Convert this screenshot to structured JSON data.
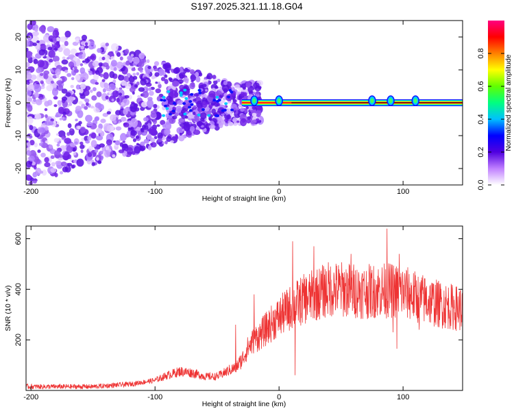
{
  "title": "S197.2025.321.11.18.G04",
  "chart_data": [
    {
      "type": "heatmap",
      "name": "spectrogram",
      "xlabel": "Height of straight line (km)",
      "ylabel": "Frequency (Hz)",
      "xlim": [
        -204,
        148
      ],
      "ylim": [
        -25,
        25
      ],
      "xticks": [
        -200,
        -100,
        0,
        100
      ],
      "yticks": [
        -20,
        -10,
        0,
        10,
        20
      ],
      "colorbar": {
        "label": "Normalized spectral amplitude",
        "range": [
          0,
          1
        ],
        "ticks": [
          "0.0",
          "0.2",
          "0.4",
          "0.6",
          "0.8"
        ],
        "tick_values": [
          0,
          0.2,
          0.4,
          0.6,
          0.8
        ],
        "colors": [
          "#ffffff",
          "#c080ff",
          "#5000e0",
          "#0000ff",
          "#00c0ff",
          "#00ff80",
          "#60ff00",
          "#ffff00",
          "#ff8000",
          "#ff0000",
          "#ff0080"
        ]
      },
      "features": {
        "noise_region_km": [
          -204,
          -35
        ],
        "ridge_start_km": -30,
        "ridge_frequency_hz": 0,
        "ridge_bumps_km": [
          -20,
          0,
          75,
          90,
          110
        ]
      }
    },
    {
      "type": "line",
      "name": "snr",
      "xlabel": "Height of straight line (km)",
      "ylabel": "SNR (10 * v/v)",
      "xlim": [
        -204,
        148
      ],
      "ylim": [
        0,
        650
      ],
      "xticks": [
        -200,
        -100,
        0,
        100
      ],
      "yticks": [
        200,
        400,
        600
      ],
      "color": "#ee3333",
      "trend": {
        "x": [
          -204,
          -150,
          -120,
          -100,
          -90,
          -80,
          -70,
          -60,
          -50,
          -40,
          -35,
          -30,
          -25,
          -20,
          -15,
          -10,
          -5,
          0,
          5,
          10,
          20,
          30,
          40,
          50,
          60,
          70,
          80,
          90,
          100,
          110,
          120,
          130,
          140,
          148
        ],
        "y": [
          15,
          15,
          25,
          40,
          60,
          75,
          70,
          55,
          55,
          80,
          90,
          120,
          170,
          200,
          220,
          245,
          270,
          290,
          310,
          330,
          360,
          380,
          400,
          400,
          395,
          390,
          395,
          395,
          390,
          370,
          355,
          340,
          330,
          320
        ]
      },
      "spikes": [
        {
          "x": -35,
          "y": 260
        },
        {
          "x": -20,
          "y": 380
        },
        {
          "x": 11,
          "y": 590
        },
        {
          "x": 13,
          "y": 60
        },
        {
          "x": 28,
          "y": 570
        },
        {
          "x": 58,
          "y": 540
        },
        {
          "x": 87,
          "y": 640
        },
        {
          "x": 97,
          "y": 540
        },
        {
          "x": 92,
          "y": 230
        },
        {
          "x": 113,
          "y": 585
        },
        {
          "x": 95,
          "y": 165
        },
        {
          "x": 113,
          "y": 240
        }
      ]
    }
  ]
}
